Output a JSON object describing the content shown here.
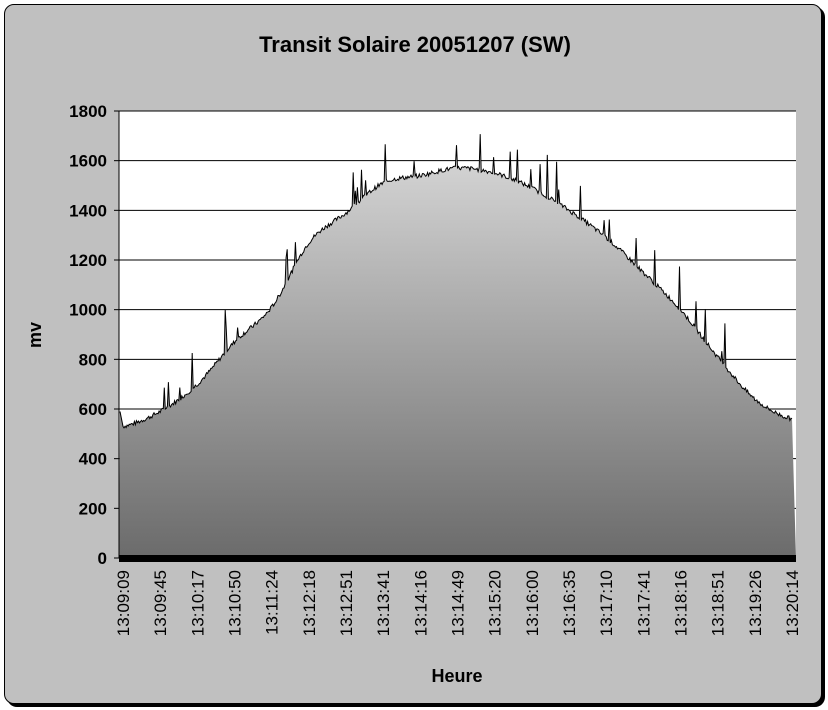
{
  "chart_data": {
    "type": "area",
    "title": "Transit Solaire 20051207 (SW)",
    "xlabel": "Heure",
    "ylabel": "mv",
    "ylim": [
      0,
      1800
    ],
    "yticks": [
      0,
      200,
      400,
      600,
      800,
      1000,
      1200,
      1400,
      1600,
      1800
    ],
    "grid": true,
    "legend": "none",
    "x_tick_labels": [
      "13:09:09",
      "13:09:45",
      "13:10:17",
      "13:10:50",
      "13:11:24",
      "13:12:18",
      "13:12:51",
      "13:13:41",
      "13:14:16",
      "13:14:49",
      "13:15:20",
      "13:16:00",
      "13:16:35",
      "13:17:10",
      "13:17:41",
      "13:18:16",
      "13:18:51",
      "13:19:26",
      "13:20:14"
    ],
    "series": [
      {
        "x": [
          "13:09:09",
          "13:09:45",
          "13:10:17",
          "13:10:50",
          "13:11:24",
          "13:12:18",
          "13:12:51",
          "13:13:41",
          "13:14:16",
          "13:14:49",
          "13:15:20",
          "13:16:00",
          "13:16:35",
          "13:17:10",
          "13:17:41",
          "13:18:16",
          "13:18:51",
          "13:19:26",
          "13:20:14"
        ],
        "values": [
          530,
          590,
          700,
          870,
          1010,
          1270,
          1390,
          1510,
          1540,
          1570,
          1550,
          1490,
          1400,
          1290,
          1150,
          1000,
          810,
          640,
          560
        ]
      }
    ],
    "colors": {
      "plot_background": "#ffffff",
      "chart_background": "#c0c0c0",
      "area_top": "#dadada",
      "area_bottom": "#6b6b6b",
      "line": "#000000",
      "grid": "#000000"
    }
  }
}
